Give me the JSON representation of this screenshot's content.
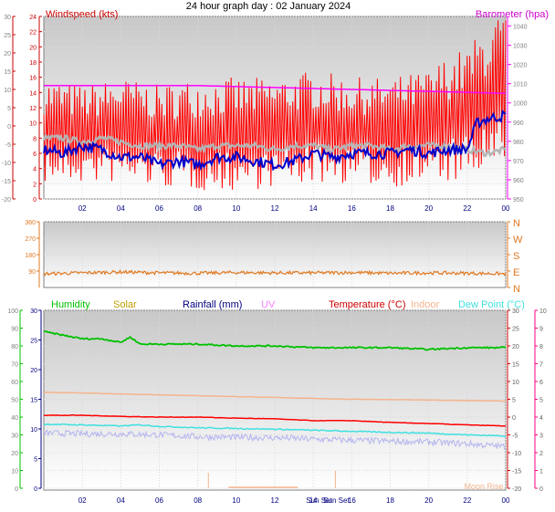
{
  "page": {
    "title": "24 hour graph day : 02 January 2024",
    "day_markers": [
      "Sun Set",
      "Sun Set"
    ],
    "extra_label": "Moon Rise"
  },
  "colors": {
    "wind_red": "#ff0000",
    "avg_blue": "#0000cc",
    "gust_gray": "#b4b4b4",
    "baro_magenta": "#ff00ff",
    "dir_orange": "#e07820",
    "humidity_green": "#00c000",
    "temp_red": "#ff0000",
    "indoor_peach": "#f4b48c",
    "dew_cyan": "#40e0e0",
    "lavender": "#b4b4f0",
    "axis_red": "#cc0000",
    "axis_navy": "#000080",
    "axis_pink": "#ff0080"
  },
  "chart_data": [
    {
      "type": "line",
      "name": "wind-barometer",
      "title": "Windspeed (kts)",
      "right_title": "Barometer (hpa)",
      "x_ticks": [
        "02",
        "04",
        "06",
        "08",
        "10",
        "12",
        "14",
        "16",
        "18",
        "20",
        "22",
        "00"
      ],
      "left_ylim": [
        -20,
        30
      ],
      "left_ticks": [
        -20,
        -15,
        -10,
        -5,
        0,
        5,
        10,
        15,
        20,
        25,
        30
      ],
      "left_tick_labels": [
        "-20",
        "-15",
        "-10",
        "-5",
        "0",
        "5",
        "10",
        "15",
        "20",
        "25",
        "30"
      ],
      "inner_ylim": [
        0,
        24
      ],
      "inner_ticks": [
        0,
        2,
        4,
        6,
        8,
        10,
        12,
        14,
        16,
        18,
        20,
        22,
        24
      ],
      "right_ylim": [
        950,
        1045
      ],
      "right_ticks": [
        950,
        960,
        970,
        980,
        990,
        1000,
        1010,
        1020,
        1030,
        1040
      ],
      "series": [
        {
          "name": "",
          "color": "#ff0000",
          "hours": [
            0,
            2,
            4,
            6,
            8,
            10,
            12,
            14,
            16,
            18,
            20,
            21,
            22,
            23,
            24
          ],
          "min": [
            2,
            2,
            2,
            1.5,
            1,
            1,
            1.5,
            2,
            2,
            1.5,
            2,
            2,
            2,
            3,
            3
          ],
          "max": [
            16,
            15,
            16,
            15,
            16,
            16,
            16,
            17,
            16,
            16,
            17,
            19,
            20,
            23,
            25
          ]
        },
        {
          "name": "",
          "color": "#0000cc",
          "hours": [
            0,
            1,
            2,
            3,
            4,
            5,
            6,
            7,
            8,
            9,
            10,
            11,
            12,
            13,
            14,
            15,
            16,
            17,
            18,
            19,
            20,
            21,
            22,
            22.5,
            23,
            24
          ],
          "values": [
            6.5,
            6,
            7,
            6.5,
            5.5,
            5.5,
            4.5,
            5,
            4.5,
            5.5,
            5.5,
            5,
            4.5,
            5,
            6,
            5.5,
            6,
            6,
            6,
            6.5,
            6,
            6.5,
            6.5,
            10,
            10.5,
            11
          ]
        },
        {
          "name": "",
          "color": "#b4b4b4",
          "hours": [
            0,
            1,
            2,
            3,
            4,
            5,
            6,
            7,
            8,
            9,
            10,
            11,
            12,
            13,
            14,
            15,
            16,
            17,
            18,
            19,
            20,
            21,
            22,
            23,
            24
          ],
          "values": [
            8,
            8,
            7.5,
            8,
            7.5,
            7,
            7,
            7,
            6.5,
            7,
            7,
            7,
            6.5,
            7,
            7,
            6.5,
            7,
            7,
            6.5,
            7,
            7,
            7,
            6.5,
            6,
            6.5
          ]
        },
        {
          "name": "",
          "color": "#ff00ff",
          "axis": "right",
          "hours": [
            0,
            4,
            8,
            12,
            16,
            20,
            24
          ],
          "values": [
            1009,
            1009,
            1009,
            1008,
            1007,
            1006,
            1005
          ]
        }
      ]
    },
    {
      "type": "line",
      "name": "wind-direction",
      "left_ylim": [
        0,
        360
      ],
      "left_ticks": [
        90,
        180,
        270,
        360
      ],
      "left_tick_labels": [
        "90",
        "180",
        "270",
        "360"
      ],
      "right_labels": [
        "N",
        "W",
        "S",
        "E",
        "N"
      ],
      "series": [
        {
          "name": "",
          "color": "#e07820",
          "hours": [
            0,
            2,
            4,
            6,
            8,
            10,
            12,
            14,
            16,
            18,
            20,
            22,
            24
          ],
          "values": [
            75,
            80,
            85,
            80,
            78,
            82,
            80,
            80,
            82,
            78,
            80,
            78,
            75
          ]
        }
      ]
    },
    {
      "type": "line",
      "name": "temperature-humidity",
      "legend": [
        "Humidity",
        "Solar",
        "Rainfall (mm)",
        "UV",
        "Temperature (°C)",
        "Indoor",
        "Dew Point (°C)"
      ],
      "legend_colors": [
        "#00c000",
        "#c0a000",
        "#000080",
        "#ff80ff",
        "#cc0000",
        "#f4b48c",
        "#40e0e0"
      ],
      "x_ticks": [
        "02",
        "04",
        "06",
        "08",
        "10",
        "12",
        "14",
        "16",
        "18",
        "20",
        "22",
        "00"
      ],
      "humidity_ylim": [
        0,
        100
      ],
      "humidity_ticks": [
        0,
        10,
        20,
        30,
        40,
        50,
        60,
        70,
        80,
        90,
        100
      ],
      "rain_ylim": [
        0,
        30
      ],
      "rain_ticks": [
        0,
        5,
        10,
        15,
        20,
        25,
        30
      ],
      "temp_ylim": [
        -20,
        30
      ],
      "temp_ticks": [
        -20,
        -15,
        -10,
        -5,
        0,
        5,
        10,
        15,
        20,
        25,
        30
      ],
      "uv_ylim": [
        0,
        10
      ],
      "uv_ticks": [
        0,
        1,
        2,
        3,
        4,
        5,
        6,
        7,
        8,
        9,
        10
      ],
      "series": [
        {
          "name": "Humidity",
          "color": "#00c000",
          "axis": "humidity",
          "hours": [
            0,
            1,
            2,
            3,
            4,
            4.5,
            5,
            6,
            8,
            10,
            12,
            14,
            16,
            18,
            20,
            22,
            24
          ],
          "values": [
            88,
            86,
            84,
            84,
            82,
            85,
            81,
            81,
            81,
            80,
            80,
            79,
            79,
            79,
            78,
            79,
            79
          ]
        },
        {
          "name": "Indoor",
          "color": "#f4b48c",
          "axis": "temp",
          "hours": [
            0,
            4,
            8,
            12,
            16,
            20,
            24
          ],
          "values": [
            7,
            6.5,
            6,
            5.5,
            5,
            4.8,
            4.5
          ]
        },
        {
          "name": "Temperature (°C)",
          "color": "#ff0000",
          "axis": "temp",
          "hours": [
            0,
            2,
            4,
            6,
            8,
            10,
            12,
            14,
            16,
            18,
            20,
            22,
            24
          ],
          "values": [
            0.5,
            0.5,
            0.2,
            0,
            0,
            -0.3,
            -0.5,
            -1,
            -1,
            -1.5,
            -1.8,
            -2.2,
            -2.5
          ]
        },
        {
          "name": "Dew Point (°C)",
          "color": "#40e0e0",
          "axis": "temp",
          "hours": [
            0,
            2,
            4,
            5,
            6,
            8,
            10,
            12,
            14,
            16,
            18,
            20,
            22,
            24
          ],
          "values": [
            -2,
            -2.2,
            -2.5,
            -2.2,
            -2.6,
            -3,
            -3.2,
            -3.4,
            -3.7,
            -4,
            -4.3,
            -4.5,
            -5,
            -5.3
          ]
        },
        {
          "name": "",
          "color": "#b4b4f0",
          "axis": "temp",
          "hours": [
            0,
            2,
            4,
            6,
            8,
            10,
            12,
            14,
            16,
            18,
            20,
            22,
            24
          ],
          "values": [
            -4.5,
            -4.7,
            -4.7,
            -5,
            -5.5,
            -5.7,
            -5.8,
            -6.2,
            -6.5,
            -6.8,
            -7,
            -7.5,
            -8.3
          ]
        }
      ]
    }
  ]
}
